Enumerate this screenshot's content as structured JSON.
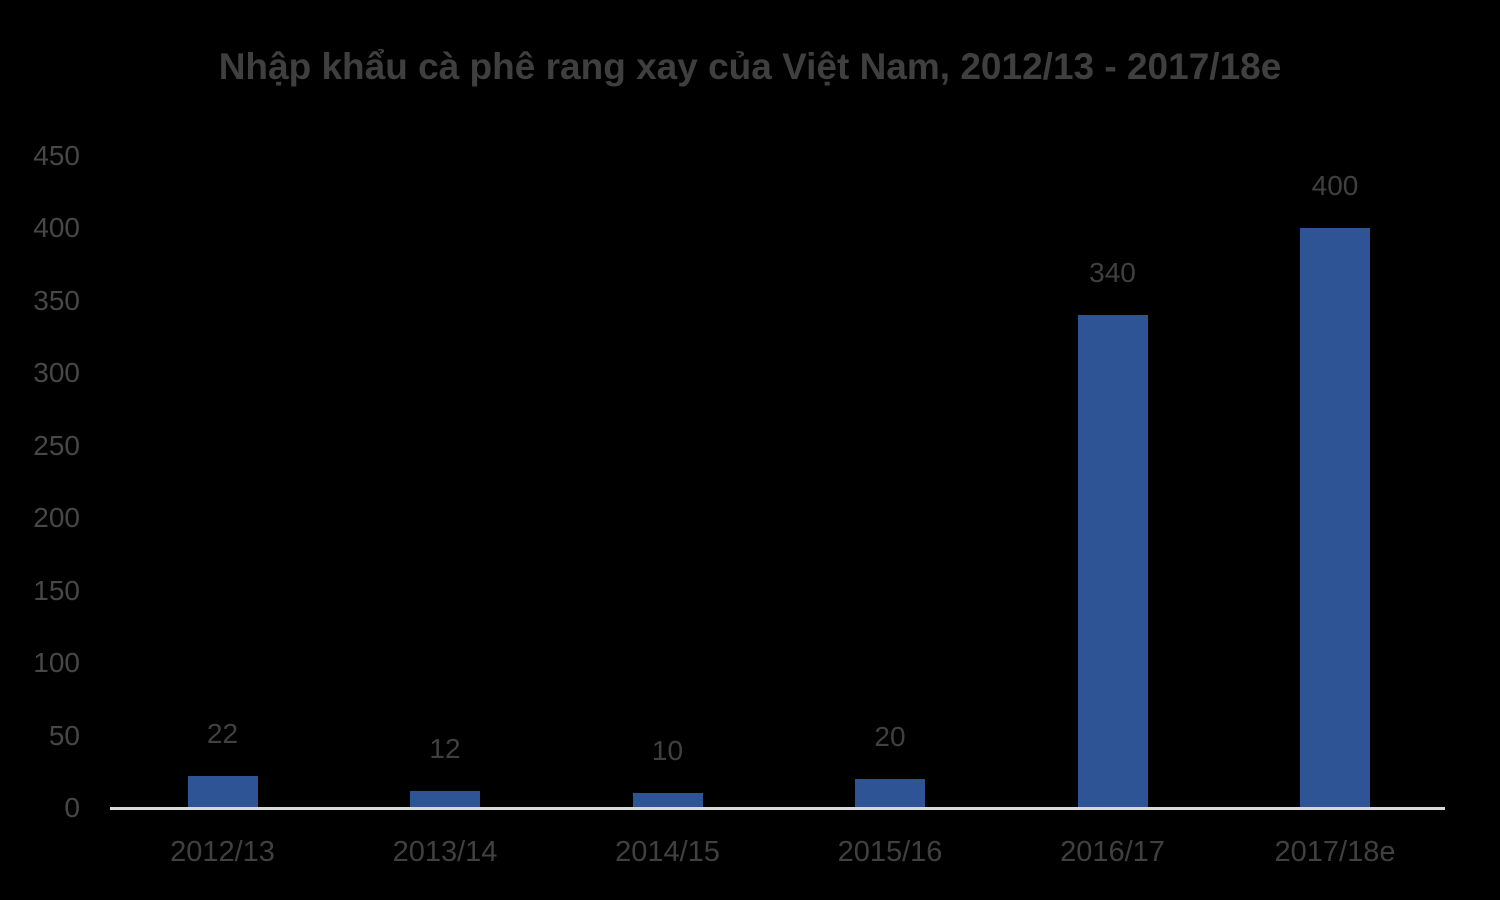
{
  "chart_data": {
    "type": "bar",
    "title": "Nhập khẩu cà phê rang xay của Việt Nam, 2012/13 - 2017/18e",
    "categories": [
      "2012/13",
      "2013/14",
      "2014/15",
      "2015/16",
      "2016/17",
      "2017/18e"
    ],
    "values": [
      22,
      12,
      10,
      20,
      340,
      400
    ],
    "data_labels": [
      "22",
      "12",
      "10",
      "20",
      "340",
      "400"
    ],
    "xlabel": "",
    "ylabel": "",
    "ylim": [
      0,
      450
    ],
    "y_tick_step": 50,
    "y_ticks": [
      0,
      50,
      100,
      150,
      200,
      250,
      300,
      350,
      400,
      450
    ],
    "grid": false,
    "legend": "none",
    "colors": {
      "bar": "#2f5496",
      "title_text": "#3f3f3f",
      "label_text": "#404040",
      "axis_line": "#d9d9d9",
      "background": "#000000"
    }
  }
}
